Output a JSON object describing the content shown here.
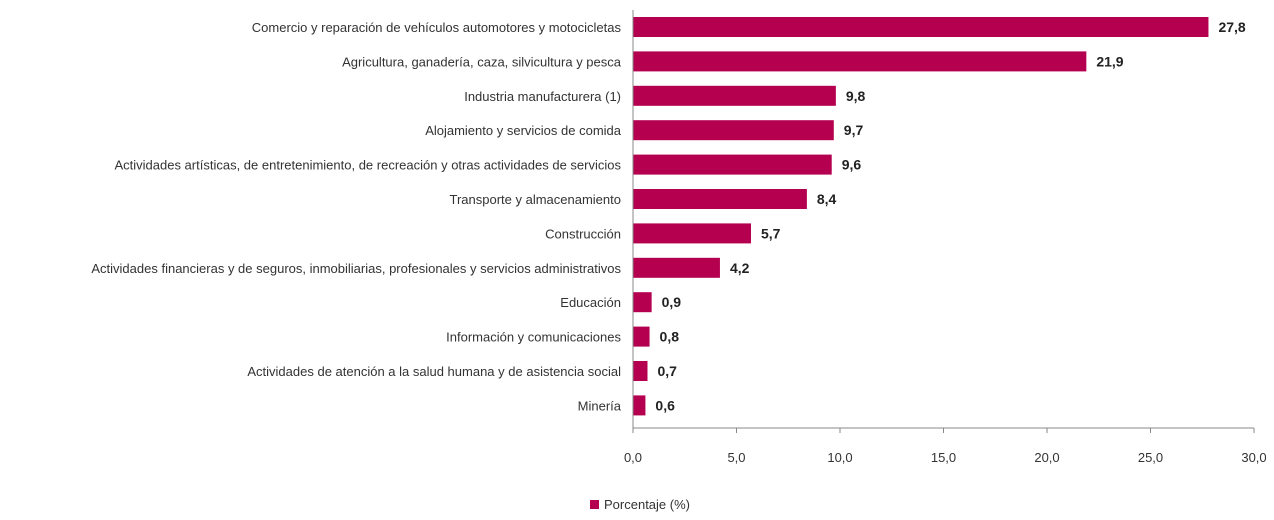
{
  "chart_data": {
    "type": "bar",
    "orientation": "horizontal",
    "categories": [
      "Comercio y reparación de vehículos automotores y motocicletas",
      "Agricultura, ganadería, caza, silvicultura y pesca",
      "Industria manufacturera (1)",
      "Alojamiento y servicios de comida",
      "Actividades artísticas, de entretenimiento, de recreación y otras actividades de servicios",
      "Transporte y almacenamiento",
      "Construcción",
      "Actividades financieras y de seguros, inmobiliarias, profesionales y servicios administrativos",
      "Educación",
      "Información y comunicaciones",
      "Actividades de atención a la salud humana y de asistencia social",
      "Minería"
    ],
    "series": [
      {
        "name": "Porcentaje (%)",
        "values": [
          27.8,
          21.9,
          9.8,
          9.7,
          9.6,
          8.4,
          5.7,
          4.2,
          0.9,
          0.8,
          0.7,
          0.6
        ],
        "value_labels": [
          "27,8",
          "21,9",
          "9,8",
          "9,7",
          "9,6",
          "8,4",
          "5,7",
          "4,2",
          "0,9",
          "0,8",
          "0,7",
          "0,6"
        ]
      }
    ],
    "xlim": [
      0,
      30
    ],
    "x_ticks": [
      0,
      5,
      10,
      15,
      20,
      25,
      30
    ],
    "x_tick_labels": [
      "0,0",
      "5,0",
      "10,0",
      "15,0",
      "20,0",
      "25,0",
      "30,0"
    ],
    "title": "",
    "xlabel": "",
    "ylabel": "",
    "grid": false,
    "legend": "bottom-center",
    "colors": {
      "bar": "#b5004f",
      "axis": "#888888",
      "text": "#333333"
    }
  }
}
